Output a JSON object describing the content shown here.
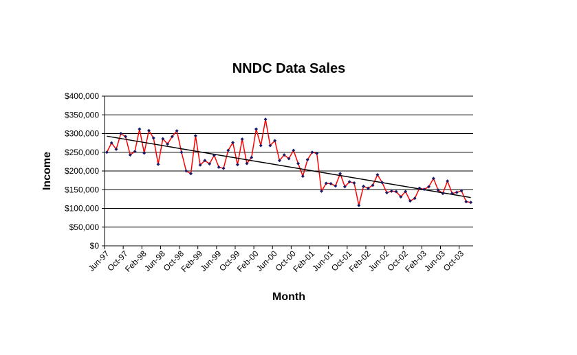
{
  "chart_data": {
    "type": "line",
    "title": "NNDC Data Sales",
    "x_label": "Month",
    "y_label": "Income",
    "categories": [
      "Jun-97",
      null,
      null,
      null,
      "Oct-97",
      null,
      null,
      null,
      "Feb-98",
      null,
      null,
      null,
      "Jun-98",
      null,
      null,
      null,
      "Oct-98",
      null,
      null,
      null,
      "Feb-99",
      null,
      null,
      null,
      "Jun-99",
      null,
      null,
      null,
      "Oct-99",
      null,
      null,
      null,
      "Feb-00",
      null,
      null,
      null,
      "Jun-00",
      null,
      null,
      null,
      "Oct-00",
      null,
      null,
      null,
      "Feb-01",
      null,
      null,
      null,
      "Jun-01",
      null,
      null,
      null,
      "Oct-01",
      null,
      null,
      null,
      "Feb-02",
      null,
      null,
      null,
      "Jun-02",
      null,
      null,
      null,
      "Oct-02",
      null,
      null,
      null,
      "Feb-03",
      null,
      null,
      null,
      "Jun-03",
      null,
      null,
      null,
      "Oct-03",
      null,
      null
    ],
    "values": [
      250000,
      275000,
      258000,
      300000,
      292000,
      243000,
      252000,
      312000,
      248000,
      308000,
      288000,
      218000,
      286000,
      272000,
      292000,
      307000,
      250000,
      200000,
      193000,
      294000,
      216000,
      228000,
      219000,
      242000,
      210000,
      207000,
      255000,
      276000,
      217000,
      285000,
      220000,
      236000,
      312000,
      268000,
      338000,
      268000,
      281000,
      228000,
      243000,
      233000,
      255000,
      220000,
      186000,
      230000,
      250000,
      247000,
      146000,
      167000,
      166000,
      160000,
      193000,
      158000,
      171000,
      168000,
      108000,
      159000,
      154000,
      162000,
      190000,
      169000,
      142000,
      146000,
      145000,
      131000,
      145000,
      120000,
      127000,
      154000,
      151000,
      158000,
      180000,
      149000,
      140000,
      173000,
      140000,
      143000,
      147000,
      118000,
      116000
    ],
    "color": "#ff0000",
    "marker_color": "#1a1a66",
    "trendline": {
      "start": 293000,
      "end": 129000,
      "color": "#000000"
    },
    "ylim": [
      0,
      400000
    ],
    "yticks": [
      {
        "value": 0,
        "label": "$0"
      },
      {
        "value": 50000,
        "label": "$50,000"
      },
      {
        "value": 100000,
        "label": "$100,000"
      },
      {
        "value": 150000,
        "label": "$150,000"
      },
      {
        "value": 200000,
        "label": "$200,000"
      },
      {
        "value": 250000,
        "label": "$250,000"
      },
      {
        "value": 300000,
        "label": "$300,000"
      },
      {
        "value": 350000,
        "label": "$350,000"
      },
      {
        "value": 400000,
        "label": "$400,000"
      }
    ],
    "grid": true
  }
}
